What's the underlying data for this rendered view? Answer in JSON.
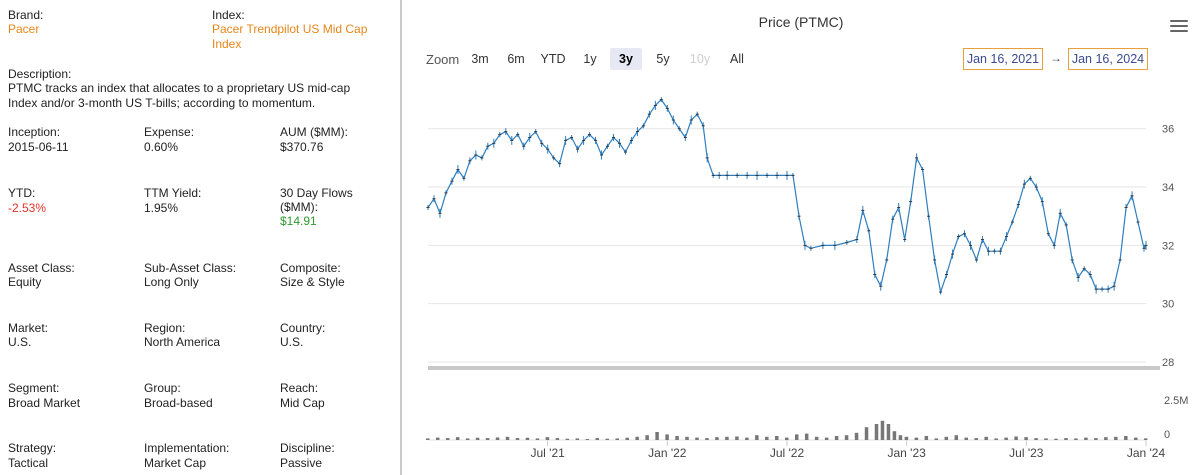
{
  "info": {
    "brand_label": "Brand:",
    "brand_value": "Pacer",
    "index_label": "Index:",
    "index_value_line1": "Pacer Trendpilot US Mid Cap",
    "index_value_line2": "Index",
    "description_label": "Description:",
    "description_line1": "PTMC tracks an index that allocates to a proprietary US mid-cap",
    "description_line2": "Index and/or 3-month US T-bills; according to momentum.",
    "inception_label": "Inception:",
    "inception_value": "2015-06-11",
    "expense_label": "Expense:",
    "expense_value": "0.60%",
    "aum_label": "AUM ($MM):",
    "aum_value": "$370.76",
    "ytd_label": "YTD:",
    "ytd_value": "-2.53%",
    "ttm_label": "TTM Yield:",
    "ttm_value": "1.95%",
    "flows_label_line1": "30 Day Flows",
    "flows_label_line2": "($MM):",
    "flows_value": "$14.91",
    "asset_class_label": "Asset Class:",
    "asset_class_value": "Equity",
    "sub_asset_label": "Sub-Asset Class:",
    "sub_asset_value": "Long Only",
    "composite_label": "Composite:",
    "composite_value": "Size & Style",
    "market_label": "Market:",
    "market_value": "U.S.",
    "region_label": "Region:",
    "region_value": "North America",
    "country_label": "Country:",
    "country_value": "U.S.",
    "segment_label": "Segment:",
    "segment_value": "Broad Market",
    "group_label": "Group:",
    "group_value": "Broad-based",
    "reach_label": "Reach:",
    "reach_value": "Mid Cap",
    "strategy_label": "Strategy:",
    "strategy_value": "Tactical",
    "implementation_label": "Implementation:",
    "implementation_value": "Market Cap",
    "discipline_label": "Discipline:",
    "discipline_value": "Passive"
  },
  "toolbar": {
    "zoom_label": "Zoom",
    "buttons": [
      "3m",
      "6m",
      "YTD",
      "1y",
      "3y",
      "5y",
      "10y",
      "All"
    ],
    "active": "3y",
    "disabled": "10y",
    "from_date": "Jan 16, 2021",
    "to_date": "Jan 16, 2024",
    "arrow": "→"
  },
  "colors": {
    "accent_orange": "#e8861a",
    "negative_red": "#e0332b",
    "positive_green": "#2f9b2f",
    "price_line": "#2f7ebd",
    "volume_bar": "#777777",
    "active_button_bg": "#e6e9f4"
  },
  "icons": {
    "menu": "hamburger-menu-icon"
  },
  "chart_data": {
    "type": "line",
    "title": "Price (PTMC)",
    "x_tick_labels": [
      "Jul '21",
      "Jan '22",
      "Jul '22",
      "Jan '23",
      "Jul '23",
      "Jan '24"
    ],
    "x_tick_months": [
      6,
      12,
      18,
      24,
      30,
      36
    ],
    "x_range_months": [
      0,
      36
    ],
    "y_ticks": [
      28,
      30,
      32,
      34,
      36
    ],
    "y_range": [
      28,
      37.5
    ],
    "volume_ticks": [
      "0",
      "2.5M"
    ],
    "volume_range": [
      0,
      2.5
    ],
    "price_series": [
      [
        0.0,
        33.3
      ],
      [
        0.3,
        33.6
      ],
      [
        0.6,
        33.1
      ],
      [
        0.9,
        33.8
      ],
      [
        1.2,
        34.2
      ],
      [
        1.5,
        34.6
      ],
      [
        1.8,
        34.3
      ],
      [
        2.1,
        34.9
      ],
      [
        2.4,
        35.1
      ],
      [
        2.7,
        35.0
      ],
      [
        3.0,
        35.4
      ],
      [
        3.3,
        35.5
      ],
      [
        3.6,
        35.8
      ],
      [
        3.9,
        35.9
      ],
      [
        4.2,
        35.6
      ],
      [
        4.5,
        35.8
      ],
      [
        4.8,
        35.4
      ],
      [
        5.1,
        35.7
      ],
      [
        5.4,
        35.9
      ],
      [
        5.7,
        35.5
      ],
      [
        6.0,
        35.3
      ],
      [
        6.3,
        35.0
      ],
      [
        6.6,
        34.8
      ],
      [
        6.9,
        35.6
      ],
      [
        7.2,
        35.7
      ],
      [
        7.5,
        35.3
      ],
      [
        7.8,
        35.6
      ],
      [
        8.1,
        35.8
      ],
      [
        8.4,
        35.6
      ],
      [
        8.7,
        35.1
      ],
      [
        9.0,
        35.4
      ],
      [
        9.3,
        35.7
      ],
      [
        9.6,
        35.5
      ],
      [
        9.9,
        35.2
      ],
      [
        10.2,
        35.6
      ],
      [
        10.5,
        35.9
      ],
      [
        10.8,
        36.1
      ],
      [
        11.1,
        36.5
      ],
      [
        11.4,
        36.8
      ],
      [
        11.7,
        37.0
      ],
      [
        12.0,
        36.7
      ],
      [
        12.3,
        36.3
      ],
      [
        12.6,
        36.0
      ],
      [
        12.9,
        35.7
      ],
      [
        13.2,
        36.3
      ],
      [
        13.5,
        36.5
      ],
      [
        13.8,
        36.1
      ],
      [
        14.0,
        35.0
      ],
      [
        14.3,
        34.4
      ],
      [
        14.6,
        34.4
      ],
      [
        15.0,
        34.4
      ],
      [
        15.5,
        34.4
      ],
      [
        16.0,
        34.4
      ],
      [
        16.5,
        34.4
      ],
      [
        17.0,
        34.4
      ],
      [
        17.5,
        34.4
      ],
      [
        18.0,
        34.4
      ],
      [
        18.3,
        34.4
      ],
      [
        18.6,
        33.0
      ],
      [
        18.9,
        32.0
      ],
      [
        19.2,
        31.9
      ],
      [
        19.8,
        32.0
      ],
      [
        20.4,
        32.0
      ],
      [
        21.0,
        32.1
      ],
      [
        21.5,
        32.2
      ],
      [
        21.8,
        33.2
      ],
      [
        22.1,
        32.5
      ],
      [
        22.4,
        31.0
      ],
      [
        22.7,
        30.6
      ],
      [
        23.0,
        31.5
      ],
      [
        23.3,
        32.9
      ],
      [
        23.6,
        33.3
      ],
      [
        23.9,
        32.2
      ],
      [
        24.2,
        33.5
      ],
      [
        24.5,
        35.0
      ],
      [
        24.8,
        34.6
      ],
      [
        25.1,
        33.0
      ],
      [
        25.4,
        31.5
      ],
      [
        25.7,
        30.4
      ],
      [
        26.0,
        31.0
      ],
      [
        26.3,
        31.7
      ],
      [
        26.6,
        32.3
      ],
      [
        26.9,
        32.4
      ],
      [
        27.2,
        32.0
      ],
      [
        27.5,
        31.5
      ],
      [
        27.8,
        32.2
      ],
      [
        28.1,
        31.8
      ],
      [
        28.4,
        31.8
      ],
      [
        28.7,
        31.8
      ],
      [
        29.0,
        32.3
      ],
      [
        29.3,
        32.8
      ],
      [
        29.6,
        33.4
      ],
      [
        29.9,
        34.1
      ],
      [
        30.2,
        34.3
      ],
      [
        30.5,
        34.0
      ],
      [
        30.8,
        33.5
      ],
      [
        31.1,
        32.4
      ],
      [
        31.4,
        32.0
      ],
      [
        31.7,
        33.1
      ],
      [
        32.0,
        32.7
      ],
      [
        32.3,
        31.5
      ],
      [
        32.6,
        30.9
      ],
      [
        32.9,
        31.2
      ],
      [
        33.2,
        31.0
      ],
      [
        33.5,
        30.5
      ],
      [
        33.8,
        30.5
      ],
      [
        34.1,
        30.5
      ],
      [
        34.4,
        30.6
      ],
      [
        34.7,
        31.5
      ],
      [
        35.0,
        33.3
      ],
      [
        35.3,
        33.7
      ],
      [
        35.6,
        32.8
      ],
      [
        35.9,
        31.9
      ],
      [
        36.0,
        32.0
      ]
    ],
    "volume_series": [
      [
        0.0,
        0.1
      ],
      [
        0.5,
        0.15
      ],
      [
        1.0,
        0.12
      ],
      [
        1.5,
        0.18
      ],
      [
        2.0,
        0.1
      ],
      [
        2.5,
        0.14
      ],
      [
        3.0,
        0.12
      ],
      [
        3.5,
        0.16
      ],
      [
        4.0,
        0.2
      ],
      [
        4.5,
        0.12
      ],
      [
        5.0,
        0.14
      ],
      [
        5.5,
        0.1
      ],
      [
        6.0,
        0.18
      ],
      [
        6.5,
        0.12
      ],
      [
        7.0,
        0.08
      ],
      [
        7.5,
        0.1
      ],
      [
        8.0,
        0.06
      ],
      [
        8.5,
        0.12
      ],
      [
        9.0,
        0.08
      ],
      [
        9.5,
        0.1
      ],
      [
        10.0,
        0.14
      ],
      [
        10.5,
        0.2
      ],
      [
        11.0,
        0.3
      ],
      [
        11.5,
        0.5
      ],
      [
        12.0,
        0.35
      ],
      [
        12.5,
        0.25
      ],
      [
        13.0,
        0.2
      ],
      [
        13.5,
        0.15
      ],
      [
        14.0,
        0.12
      ],
      [
        14.5,
        0.18
      ],
      [
        15.0,
        0.2
      ],
      [
        15.5,
        0.22
      ],
      [
        16.0,
        0.15
      ],
      [
        16.5,
        0.3
      ],
      [
        17.0,
        0.2
      ],
      [
        17.5,
        0.25
      ],
      [
        18.0,
        0.15
      ],
      [
        18.5,
        0.35
      ],
      [
        19.0,
        0.4
      ],
      [
        19.5,
        0.2
      ],
      [
        20.0,
        0.15
      ],
      [
        20.5,
        0.25
      ],
      [
        21.0,
        0.3
      ],
      [
        21.5,
        0.45
      ],
      [
        22.0,
        0.8
      ],
      [
        22.5,
        1.0
      ],
      [
        22.8,
        1.2
      ],
      [
        23.1,
        1.0
      ],
      [
        23.4,
        0.55
      ],
      [
        23.7,
        0.3
      ],
      [
        24.0,
        0.2
      ],
      [
        24.5,
        0.15
      ],
      [
        25.0,
        0.25
      ],
      [
        25.5,
        0.1
      ],
      [
        26.0,
        0.2
      ],
      [
        26.5,
        0.3
      ],
      [
        27.0,
        0.15
      ],
      [
        27.5,
        0.12
      ],
      [
        28.0,
        0.2
      ],
      [
        28.5,
        0.1
      ],
      [
        29.0,
        0.15
      ],
      [
        29.5,
        0.22
      ],
      [
        30.0,
        0.18
      ],
      [
        30.5,
        0.12
      ],
      [
        31.0,
        0.1
      ],
      [
        31.5,
        0.08
      ],
      [
        32.0,
        0.12
      ],
      [
        32.5,
        0.1
      ],
      [
        33.0,
        0.15
      ],
      [
        33.5,
        0.12
      ],
      [
        34.0,
        0.18
      ],
      [
        34.5,
        0.2
      ],
      [
        35.0,
        0.25
      ],
      [
        35.5,
        0.15
      ],
      [
        36.0,
        0.1
      ]
    ]
  }
}
